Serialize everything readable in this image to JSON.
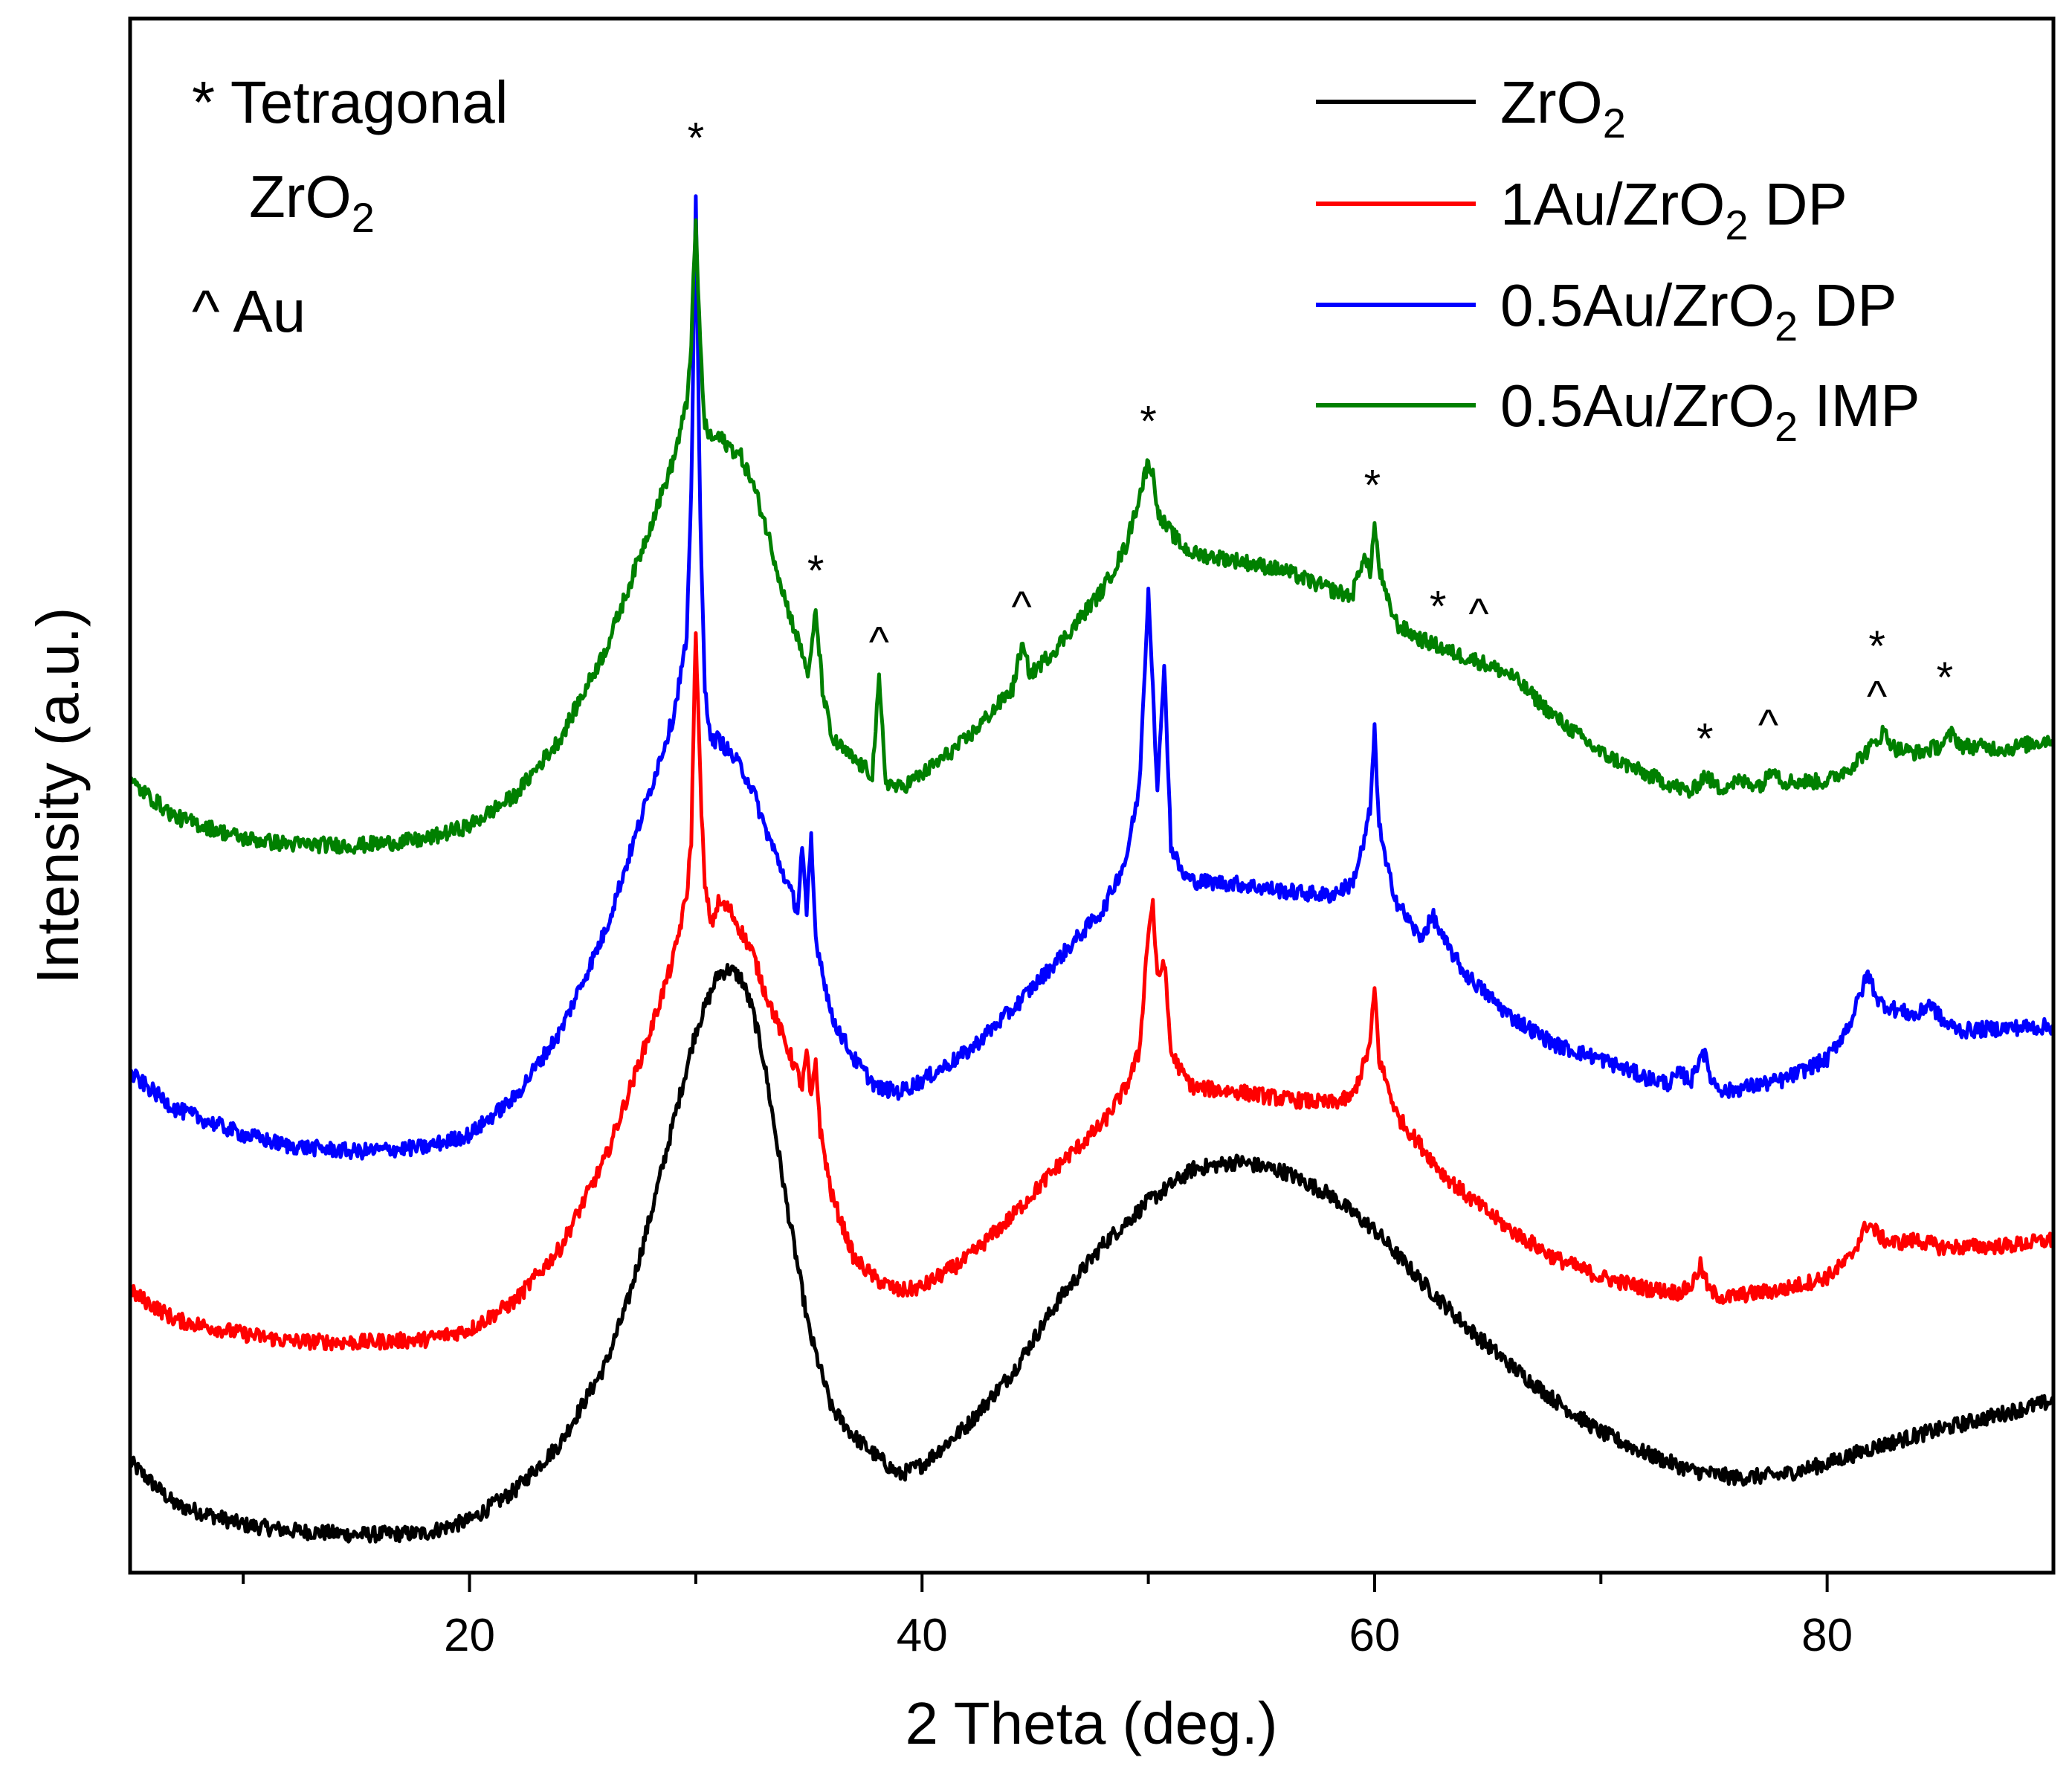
{
  "chart_data": {
    "type": "line",
    "xlabel": "2 Theta (deg.)",
    "ylabel": "Intensity (a.u.)",
    "xlim": [
      5,
      90
    ],
    "ylim": [
      0,
      100
    ],
    "xticks_major": [
      20,
      40,
      60,
      80
    ],
    "xticks_minor": [
      10,
      30,
      50,
      70
    ],
    "yticks": [],
    "legend_position": "top-right",
    "notes": [
      {
        "symbol": "*",
        "text": "Tetragonal",
        "formula": {
          "base": "ZrO",
          "sub": "2",
          "suffix": ""
        }
      },
      {
        "symbol": "^",
        "text": "Au"
      }
    ],
    "series": [
      {
        "name": "ZrO2",
        "label": {
          "base": "ZrO",
          "sub": "2",
          "suffix": ""
        },
        "color": "#000000",
        "x": [
          5,
          7,
          10,
          12,
          15,
          18,
          20,
          22,
          24,
          26,
          27,
          28,
          29,
          30,
          30.5,
          31,
          31.5,
          32,
          32.5,
          33,
          33.5,
          34,
          35,
          36,
          37,
          38,
          39,
          40,
          42,
          44,
          46,
          48,
          50,
          52,
          54,
          56,
          58,
          60,
          62,
          64,
          66,
          68,
          70,
          72,
          74,
          76,
          78,
          80,
          82,
          84,
          86,
          88,
          90
        ],
        "y": [
          6.2,
          3.2,
          1.8,
          1.4,
          1.1,
          1.2,
          2.1,
          4.2,
          7.5,
          13,
          17.5,
          23.5,
          30,
          36.5,
          38.5,
          40.5,
          40.8,
          40.2,
          38,
          34.5,
          29.5,
          24.5,
          15.5,
          10,
          8,
          6.6,
          5.3,
          6,
          8.8,
          12.5,
          17.5,
          21.5,
          24.5,
          26.8,
          27.3,
          26.6,
          25,
          22.5,
          19,
          15.8,
          13,
          10.5,
          8.3,
          6.8,
          5.6,
          5.1,
          5.3,
          6.1,
          7.2,
          8.1,
          8.9,
          9.7,
          10.5
        ]
      },
      {
        "name": "1Au/ZrO2 DP",
        "label": {
          "base": "1Au/ZrO",
          "sub": "2",
          "suffix": " DP"
        },
        "color": "#ff0000",
        "x": [
          5,
          7,
          10,
          12,
          15,
          18,
          20,
          22,
          24,
          26,
          27,
          28,
          29,
          29.6,
          29.8,
          30.0,
          30.2,
          30.4,
          30.7,
          31,
          31.5,
          32,
          32.5,
          33,
          33.5,
          34,
          34.5,
          34.7,
          34.9,
          35.1,
          35.3,
          35.5,
          36,
          37,
          38,
          39,
          40,
          42,
          44,
          46,
          48,
          49,
          49.6,
          50.0,
          50.2,
          50.4,
          50.7,
          51.0,
          51.5,
          52,
          54,
          56,
          58,
          59,
          59.5,
          59.8,
          60.0,
          60.2,
          60.5,
          61,
          62,
          63,
          64,
          66,
          68,
          70,
          72,
          73.5,
          74,
          74.4,
          74.8,
          75.5,
          76,
          78,
          80,
          81,
          81.8,
          82.5,
          83,
          84,
          85,
          86,
          88,
          90
        ],
        "y": [
          18.2,
          16.2,
          15.2,
          14.7,
          14.6,
          14.8,
          15.5,
          17.5,
          21.2,
          27.5,
          32,
          36.5,
          41.5,
          46,
          50,
          64.8,
          54,
          46.5,
          44,
          45.5,
          45,
          43.5,
          42,
          39.5,
          37.5,
          35.5,
          33.5,
          32.5,
          35,
          31.5,
          34.5,
          29.5,
          25,
          20.5,
          19,
          18.2,
          18.5,
          20.5,
          23.5,
          27,
          30,
          32.5,
          35,
          43.5,
          45.5,
          40,
          41.5,
          35,
          33.5,
          32.5,
          32.2,
          31.7,
          31.4,
          31.8,
          34,
          35.5,
          39.5,
          34.5,
          33,
          30.5,
          28.5,
          26.5,
          25,
          22.5,
          20.5,
          19.2,
          18.4,
          18.1,
          18.6,
          20,
          18.2,
          17.7,
          17.9,
          18.3,
          19.2,
          20.5,
          23,
          21.8,
          21.6,
          21.8,
          21.3,
          21.3,
          21.4,
          21.8
        ]
      },
      {
        "name": "0.5Au/ZrO2 DP",
        "label": {
          "base": "0.5Au/ZrO",
          "sub": "2",
          "suffix": " DP"
        },
        "color": "#0000ff",
        "x": [
          5,
          7,
          10,
          12,
          15,
          18,
          20,
          22,
          24,
          26,
          27,
          28,
          29,
          29.6,
          29.8,
          30.0,
          30.2,
          30.4,
          30.7,
          31,
          31.5,
          32,
          32.5,
          33,
          33.5,
          34,
          34.5,
          34.7,
          34.9,
          35.1,
          35.3,
          35.5,
          36,
          37,
          38,
          39,
          40,
          42,
          44,
          46,
          48,
          49,
          49.6,
          50.0,
          50.2,
          50.4,
          50.7,
          51.0,
          51.5,
          52,
          54,
          56,
          58,
          59,
          59.5,
          59.8,
          60.0,
          60.2,
          60.5,
          61,
          62,
          62.6,
          63,
          64,
          66,
          68,
          70,
          72,
          73,
          73.5,
          74,
          74.5,
          74.9,
          75.5,
          76,
          78,
          80,
          81,
          81.8,
          82.3,
          83,
          84,
          84.5,
          85.2,
          86,
          88,
          90
        ],
        "y": [
          33.5,
          31,
          29.2,
          28.4,
          28,
          28.3,
          29.2,
          31.8,
          36.4,
          43.5,
          48.5,
          53.5,
          58.5,
          64,
          74,
          95.5,
          72,
          60.5,
          56.8,
          57,
          56,
          55,
          53.5,
          51,
          49,
          47,
          45,
          49.5,
          44.5,
          50,
          43,
          41.5,
          37.5,
          34.5,
          32.5,
          32.2,
          33,
          35,
          38,
          41.5,
          45,
          48.5,
          53.5,
          67.5,
          61,
          53,
          62.5,
          49.5,
          47.5,
          47,
          46.8,
          46.3,
          46,
          46.8,
          49.5,
          52,
          57.5,
          51,
          48.2,
          45.5,
          43,
          44.5,
          43,
          40.5,
          37.5,
          35.5,
          34.5,
          33.2,
          32.8,
          33.5,
          33,
          35.2,
          33,
          32.2,
          32.4,
          33,
          34.5,
          37,
          40.5,
          38.5,
          38,
          37.5,
          38.5,
          37,
          36.5,
          36.7,
          36.8
        ]
      },
      {
        "name": "0.5Au/ZrO2 IMP",
        "label": {
          "base": "0.5Au/ZrO",
          "sub": "2",
          "suffix": " IMP"
        },
        "color": "#008000",
        "x": [
          5,
          7,
          10,
          12,
          15,
          18,
          20,
          22,
          24,
          26,
          27,
          28,
          29,
          29.6,
          29.8,
          30.0,
          30.2,
          30.4,
          30.7,
          31,
          31.5,
          32,
          32.5,
          33,
          33.5,
          34,
          34.5,
          35,
          35.3,
          35.6,
          36,
          37,
          37.8,
          38.1,
          38.4,
          39,
          40,
          42,
          44,
          44.4,
          44.8,
          46,
          48,
          49,
          49.6,
          50.0,
          50.2,
          50.5,
          51.0,
          51.5,
          52,
          54,
          56,
          58,
          59,
          59.5,
          59.8,
          60.0,
          60.2,
          60.5,
          61,
          62,
          62.8,
          63.5,
          64.5,
          66,
          68,
          70,
          72,
          74,
          74.6,
          75.2,
          76,
          77.2,
          77.6,
          78,
          80,
          81,
          82,
          82.5,
          83,
          84,
          85,
          85.5,
          86,
          88,
          90
        ],
        "y": [
          54,
          51.5,
          50,
          49.6,
          49.5,
          49.9,
          50.9,
          53,
          57,
          63.2,
          67.5,
          72,
          76.5,
          80.5,
          85,
          93.2,
          84.5,
          79,
          78,
          78.2,
          77.5,
          76.8,
          75,
          72.5,
          69.5,
          66.5,
          64,
          61.5,
          66,
          60.5,
          57,
          55.5,
          54.5,
          61,
          54,
          53.5,
          54.5,
          57,
          60.5,
          63.5,
          61.5,
          63.5,
          67.5,
          70.5,
          74,
          76.5,
          75.5,
          72.5,
          71.5,
          70.5,
          70,
          69.5,
          68.8,
          67.5,
          67,
          69.8,
          68.7,
          72,
          69,
          67,
          65,
          64,
          63.5,
          63,
          62.5,
          61.5,
          58.5,
          56,
          54.5,
          53.2,
          54.5,
          53.5,
          54,
          53.8,
          55.2,
          54,
          54,
          55,
          56.5,
          57.5,
          56.3,
          56,
          56.5,
          57.3,
          56.5,
          56.3,
          57
        ]
      }
    ],
    "annotations": [
      {
        "symbol": "*",
        "x": 30.0,
        "y": 99.2
      },
      {
        "symbol": "*",
        "x": 35.3,
        "y": 68.8
      },
      {
        "symbol": "^",
        "x": 38.1,
        "y": 63.8
      },
      {
        "symbol": "^",
        "x": 44.4,
        "y": 66.3
      },
      {
        "symbol": "*",
        "x": 50.0,
        "y": 79.3
      },
      {
        "symbol": "*",
        "x": 59.9,
        "y": 74.8
      },
      {
        "symbol": "*",
        "x": 62.8,
        "y": 66.3
      },
      {
        "symbol": "^",
        "x": 64.6,
        "y": 65.8
      },
      {
        "symbol": "*",
        "x": 74.6,
        "y": 57.0
      },
      {
        "symbol": "^",
        "x": 77.4,
        "y": 58.0
      },
      {
        "symbol": "*",
        "x": 82.2,
        "y": 63.5
      },
      {
        "symbol": "^",
        "x": 82.2,
        "y": 60.0
      },
      {
        "symbol": "*",
        "x": 85.2,
        "y": 61.3
      }
    ]
  }
}
